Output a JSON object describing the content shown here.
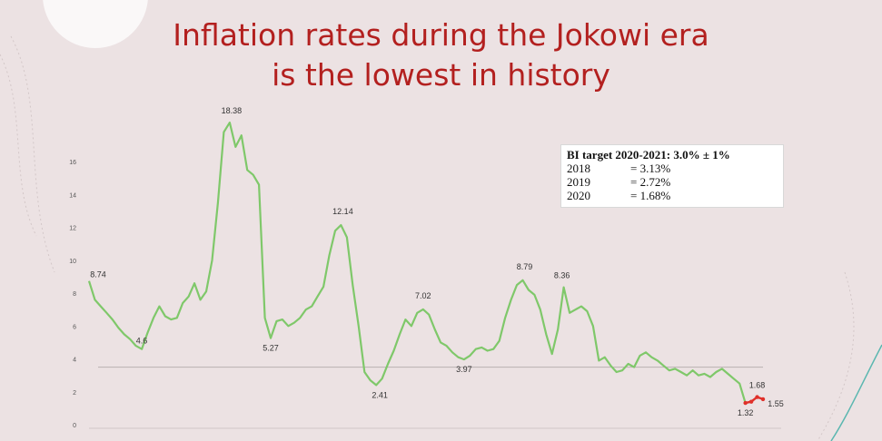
{
  "title_line1": "Inflation rates during the Jokowi era",
  "title_line2": "is the lowest in history",
  "note_box": {
    "header": "BI target 2020-2021: 3.0% ± 1%",
    "rows": [
      {
        "year": "2018",
        "value": "= 3.13%"
      },
      {
        "year": "2019",
        "value": "= 2.72%"
      },
      {
        "year": "2020",
        "value": "= 1.68%"
      }
    ]
  },
  "colors": {
    "title": "#b3201f",
    "series": "#7fc86a",
    "highlight": "#e0302a",
    "background": "#ece2e3"
  },
  "chart_data": {
    "type": "line",
    "title": "",
    "xlabel": "",
    "ylabel": "",
    "ylim": [
      0,
      18
    ],
    "yticks": [
      0,
      2,
      4,
      6,
      8,
      10,
      12,
      14,
      16
    ],
    "reference_line": 3.5,
    "series": [
      {
        "values": [
          8.74,
          7.6,
          7.2,
          6.8,
          6.4,
          5.9,
          5.5,
          5.2,
          4.8,
          4.6,
          5.6,
          6.5,
          7.2,
          6.6,
          6.4,
          6.5,
          7.4,
          7.8,
          8.6,
          7.6,
          8.1,
          10.0,
          13.5,
          17.8,
          18.38,
          16.9,
          17.6,
          15.5,
          15.2,
          14.6,
          6.5,
          5.27,
          6.3,
          6.4,
          6.0,
          6.2,
          6.5,
          7.0,
          7.2,
          7.8,
          8.4,
          10.3,
          11.8,
          12.14,
          11.4,
          8.5,
          6.0,
          3.2,
          2.7,
          2.41,
          2.8,
          3.7,
          4.5,
          5.5,
          6.4,
          6.0,
          6.8,
          7.02,
          6.7,
          5.8,
          5.0,
          4.8,
          4.4,
          4.1,
          3.97,
          4.2,
          4.6,
          4.7,
          4.5,
          4.6,
          5.1,
          6.5,
          7.6,
          8.5,
          8.79,
          8.2,
          7.9,
          7.0,
          5.5,
          4.3,
          5.8,
          8.36,
          6.8,
          7.0,
          7.2,
          6.9,
          6.0,
          3.9,
          4.1,
          3.6,
          3.2,
          3.3,
          3.7,
          3.5,
          4.2,
          4.4,
          4.1,
          3.9,
          3.6,
          3.3,
          3.4,
          3.2,
          3.0,
          3.3,
          3.0,
          3.1,
          2.9,
          3.2,
          3.4,
          3.1,
          2.8,
          2.5,
          1.32,
          1.4,
          1.68,
          1.55
        ],
        "color": "#7fc86a"
      }
    ],
    "data_labels": [
      {
        "index": 0,
        "text": "8.74"
      },
      {
        "index": 9,
        "text": "4.6"
      },
      {
        "index": 24,
        "text": "18.38"
      },
      {
        "index": 31,
        "text": "5.27"
      },
      {
        "index": 43,
        "text": "12.14"
      },
      {
        "index": 49,
        "text": "2.41"
      },
      {
        "index": 57,
        "text": "7.02"
      },
      {
        "index": 64,
        "text": "3.97"
      },
      {
        "index": 74,
        "text": "8.79"
      },
      {
        "index": 81,
        "text": "8.36"
      },
      {
        "index": 112,
        "text": "1.32"
      },
      {
        "index": 114,
        "text": "1.68"
      },
      {
        "index": 115,
        "text": "1.55"
      }
    ],
    "highlight_from_index": 112
  }
}
